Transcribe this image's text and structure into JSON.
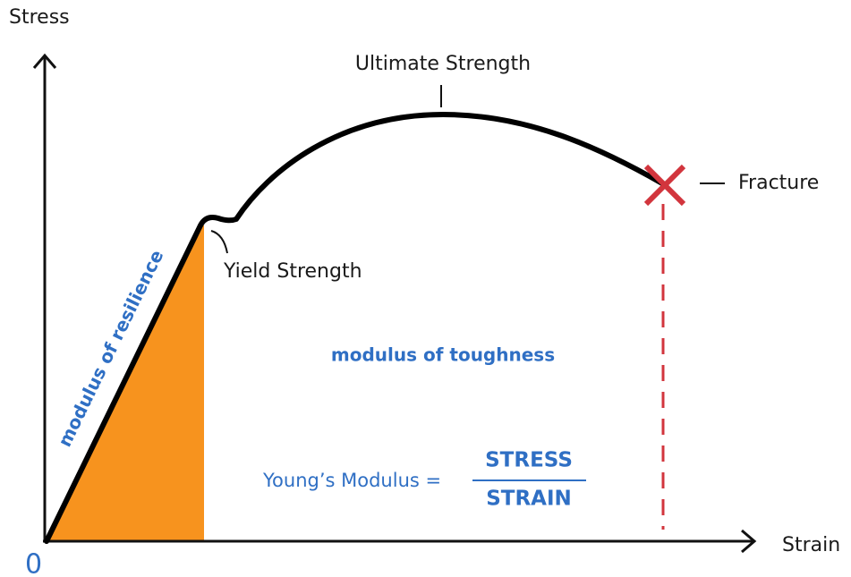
{
  "axes": {
    "y_label": "Stress",
    "x_label": "Strain",
    "origin": "0"
  },
  "labels": {
    "ultimate": "Ultimate Strength",
    "yield": "Yield Strength",
    "fracture": "Fracture"
  },
  "regions": {
    "resilience": "modulus of resilience",
    "toughness": "modulus of toughness"
  },
  "formula": {
    "lhs": "Young’s Modulus =",
    "numerator": "STRESS",
    "denominator": "STRAIN"
  }
}
